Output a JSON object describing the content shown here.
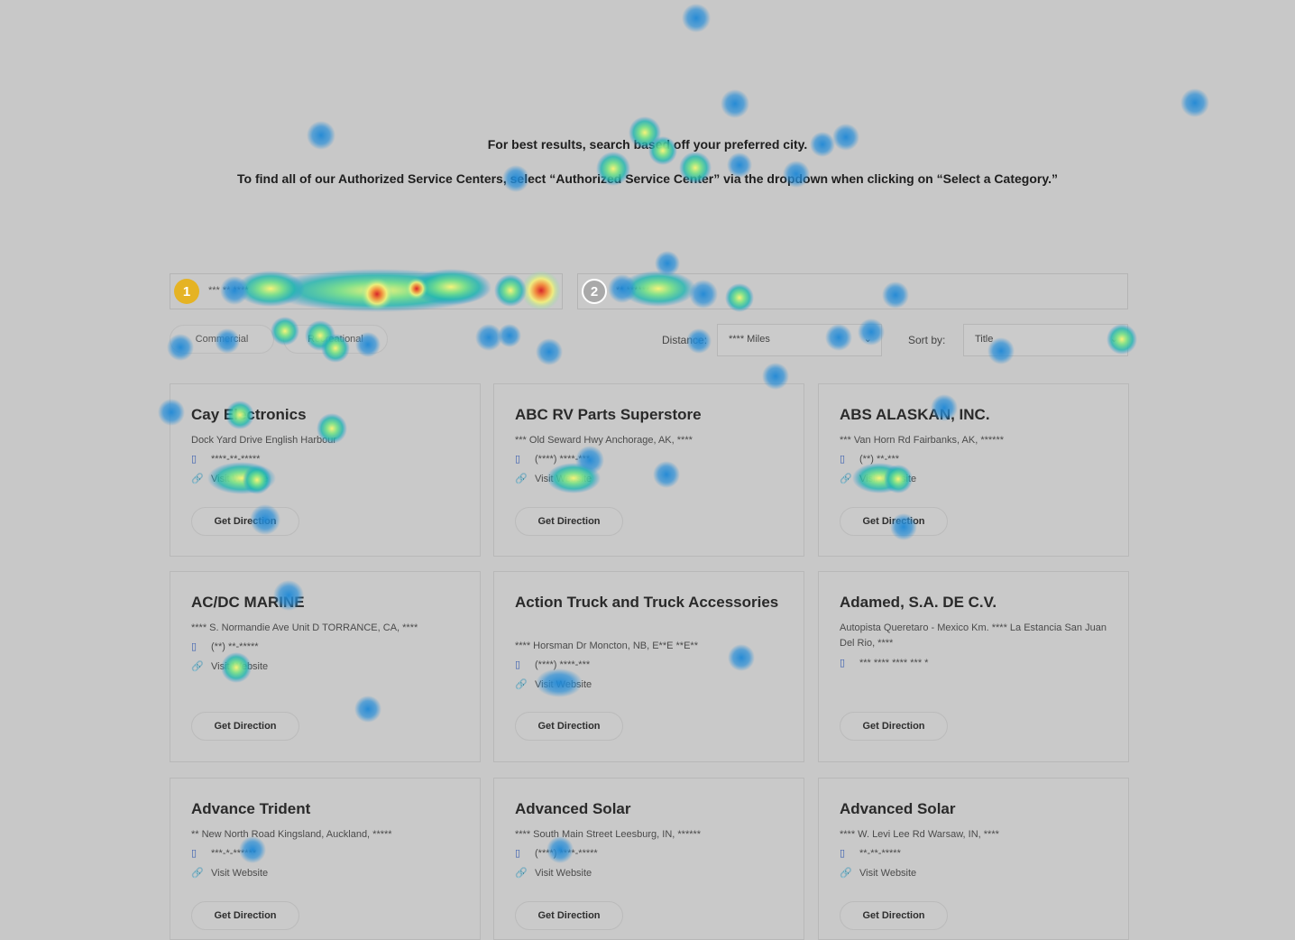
{
  "intro": {
    "line1": "For best results, search based off your preferred city.",
    "line2": "To find all of our Authorized Service Centers, select “Authorized Service Center” via the dropdown when clicking on “Select a Category.”"
  },
  "search": {
    "step1": "1",
    "step1_value": "*** ** ****",
    "step2": "2",
    "step2_value": "** ******"
  },
  "filters": {
    "commercial": "Commercial",
    "recreational": "Recreational",
    "distance_label": "Distance:",
    "distance_value": "**** Miles",
    "sort_label": "Sort by:",
    "sort_value": "Title"
  },
  "labels": {
    "visit_website": "Visit Website",
    "get_direction": "Get Direction"
  },
  "cards": [
    {
      "title": "Cay Electronics",
      "address": "Dock Yard Drive English Harbour",
      "phone": "****-**-*****",
      "website": "Visit Website"
    },
    {
      "title": "ABC RV Parts Superstore",
      "address": "*** Old Seward Hwy Anchorage, AK, ****",
      "phone": "(****) ****-***",
      "website": "Visit Website"
    },
    {
      "title": "ABS ALASKAN, INC.",
      "address": "*** Van Horn Rd Fairbanks, AK, ******",
      "phone": "(**) **-***",
      "website": "Visit Website"
    },
    {
      "title": "AC/DC MARINE",
      "address": "**** S. Normandie Ave Unit D TORRANCE, CA, ****",
      "phone": "(**) **-*****",
      "website": "Visit Website"
    },
    {
      "title": "Action Truck and Truck Accessories",
      "address": "**** Horsman Dr Moncton, NB, E**E **E**",
      "phone": "(****) ****-***",
      "website": "Visit Website"
    },
    {
      "title": "Adamed, S.A. DE C.V.",
      "address": "Autopista Queretaro - Mexico Km. **** La Estancia San Juan Del Rio, ****",
      "phone": "*** **** **** *** *"
    },
    {
      "title": "Advance Trident",
      "address": "** New North Road Kingsland, Auckland, *****",
      "phone": "***-*-******",
      "website": "Visit Website"
    },
    {
      "title": "Advanced Solar",
      "address": "**** South Main Street Leesburg, IN, ******",
      "phone": "(****) ****-*****",
      "website": "Visit Website"
    },
    {
      "title": "Advanced Solar",
      "address": "**** W. Levi Lee Rd Warsaw, IN, ****",
      "phone": "**-**-*****",
      "website": "Visit Website"
    }
  ],
  "colors": {
    "page_bg": "#c8c8c8",
    "step1": "#e5b324",
    "link_icon": "#3a5fb0"
  },
  "icons": {
    "phone": "phone-icon",
    "link": "link-icon",
    "dropdown": "chevron-down-icon"
  }
}
